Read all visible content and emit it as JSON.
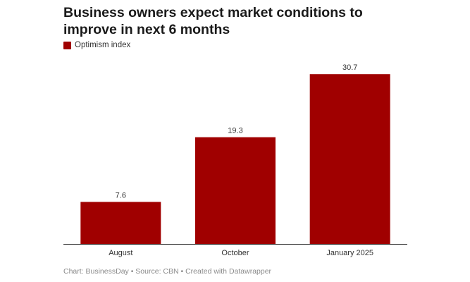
{
  "chart_data": {
    "type": "bar",
    "title": "Business owners expect market conditions to improve in next 6 months",
    "categories": [
      "August",
      "October",
      "January 2025"
    ],
    "series": [
      {
        "name": "Optimism index",
        "values": [
          7.6,
          19.3,
          30.7
        ],
        "color": "#a00000"
      }
    ],
    "data_labels": [
      "7.6",
      "19.3",
      "30.7"
    ],
    "ylim": [
      0,
      32
    ],
    "grid": false,
    "legend": "top-left"
  },
  "footer": {
    "text": "Chart: BusinessDay • Source: CBN • Created with Datawrapper"
  }
}
